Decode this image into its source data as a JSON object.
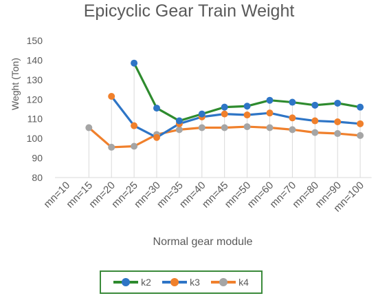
{
  "chart_data": {
    "type": "line",
    "title": "Epicyclic Gear Train Weight",
    "xlabel": "Normal gear module",
    "ylabel": "Weght (Ton)",
    "categories": [
      "mn=10",
      "mn=15",
      "mn=20",
      "mn=25",
      "mn=30",
      "mn=35",
      "mn=40",
      "mn=45",
      "mn=50",
      "mn=60",
      "mn=70",
      "mn=80",
      "mn=90",
      "mn=100"
    ],
    "ylim": [
      80,
      150
    ],
    "yticks": [
      80,
      90,
      100,
      110,
      120,
      130,
      140,
      150
    ],
    "grid": false,
    "legend_position": "bottom",
    "series": [
      {
        "name": "k2",
        "color": "#2e8b2e",
        "marker_color": "#2e75c6",
        "values": [
          null,
          null,
          null,
          138.5,
          115.5,
          109,
          112.5,
          116,
          116.5,
          119.5,
          118.5,
          117,
          118,
          116
        ]
      },
      {
        "name": "k3",
        "color": "#2e75c6",
        "marker_color": "#f0802c",
        "values": [
          null,
          null,
          121.5,
          106.5,
          100.5,
          107.5,
          111,
          112.5,
          112,
          113,
          110.5,
          109,
          108.5,
          107.5
        ]
      },
      {
        "name": "k4",
        "color": "#f0802c",
        "marker_color": "#a5a5a5",
        "values": [
          null,
          105.5,
          95.5,
          96,
          102,
          104.5,
          105.5,
          105.5,
          106,
          105.5,
          104.5,
          103,
          102.5,
          101.5
        ]
      }
    ]
  }
}
